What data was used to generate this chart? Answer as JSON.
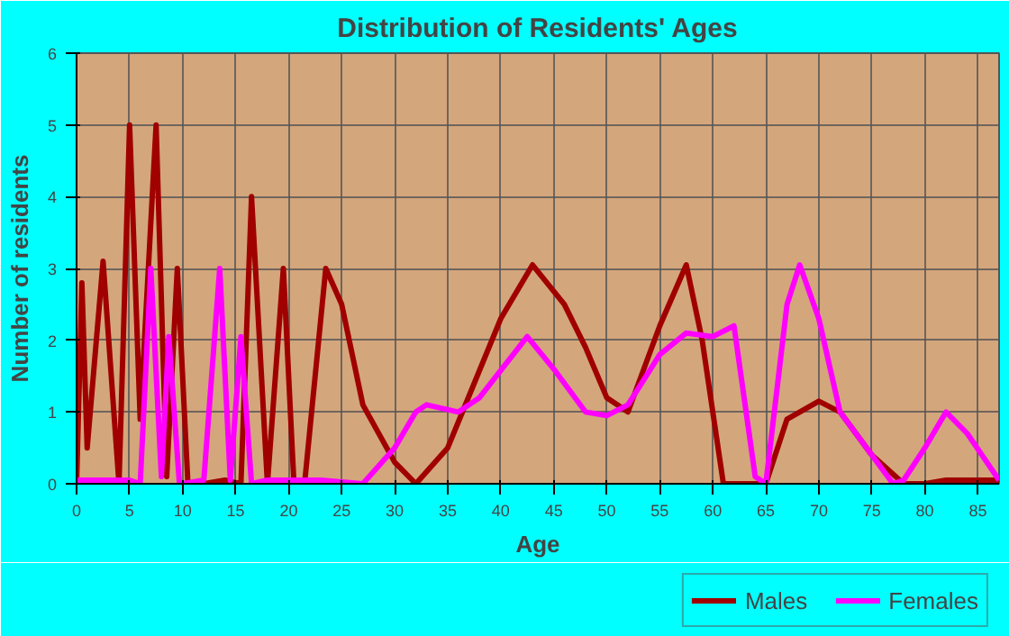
{
  "chart_data": {
    "type": "line",
    "title": "Distribution of Residents' Ages",
    "xlabel": "Age",
    "ylabel": "Number of residents",
    "xlim": [
      0,
      87
    ],
    "xticks": [
      0,
      5,
      10,
      15,
      20,
      25,
      30,
      35,
      40,
      45,
      50,
      55,
      60,
      65,
      70,
      75,
      80,
      85
    ],
    "ylim": [
      0,
      6
    ],
    "yticks": [
      0,
      1,
      2,
      3,
      4,
      5,
      6
    ],
    "grid": true,
    "legend": "bottom right",
    "marker": "none",
    "line_style": "solid",
    "series": [
      {
        "name": "Males",
        "color": "#a00000",
        "x": [
          0,
          0.5,
          1,
          2.5,
          4,
          5,
          6,
          7.5,
          8.5,
          9.5,
          10.5,
          12,
          14,
          15.5,
          16.5,
          18,
          19.5,
          20.5,
          21.5,
          23.5,
          25,
          27,
          30,
          32,
          35,
          40,
          43,
          46,
          48,
          50,
          52,
          55,
          57.5,
          59,
          61,
          63,
          65,
          67,
          70,
          72,
          75,
          78,
          80,
          82,
          87
        ],
        "values": [
          0,
          2.8,
          0.5,
          3.1,
          0,
          5,
          0.9,
          5,
          0.1,
          3,
          0,
          0,
          0.05,
          0,
          4,
          0,
          3,
          0,
          0,
          3,
          2.5,
          1.1,
          0.3,
          0,
          0.5,
          2.3,
          3.05,
          2.5,
          1.9,
          1.2,
          1,
          2.2,
          3.05,
          2,
          0,
          0,
          0,
          0.9,
          1.15,
          1,
          0.4,
          0,
          0,
          0.05,
          0.05
        ]
      },
      {
        "name": "Females",
        "color": "#ff00ff",
        "x": [
          0,
          5,
          6,
          7,
          8,
          8.7,
          9.7,
          10,
          12,
          13.5,
          14.5,
          15.5,
          16.5,
          18,
          23,
          27,
          30,
          32,
          33,
          36,
          38,
          42.5,
          45,
          48,
          50,
          52,
          55,
          57.5,
          60,
          62,
          64,
          65,
          67,
          68.2,
          70,
          72,
          75,
          77,
          78,
          80,
          82,
          84,
          87
        ],
        "values": [
          0.05,
          0.05,
          0,
          3,
          0.1,
          2.05,
          0,
          0,
          0.05,
          3,
          0.05,
          2.05,
          0,
          0.05,
          0.05,
          0,
          0.5,
          1,
          1.1,
          1,
          1.2,
          2.05,
          1.6,
          1,
          0.95,
          1.1,
          1.8,
          2.1,
          2.05,
          2.2,
          0.1,
          0,
          2.5,
          3.05,
          2.3,
          1,
          0.4,
          0,
          0.05,
          0.5,
          1,
          0.7,
          0.05
        ]
      }
    ]
  }
}
